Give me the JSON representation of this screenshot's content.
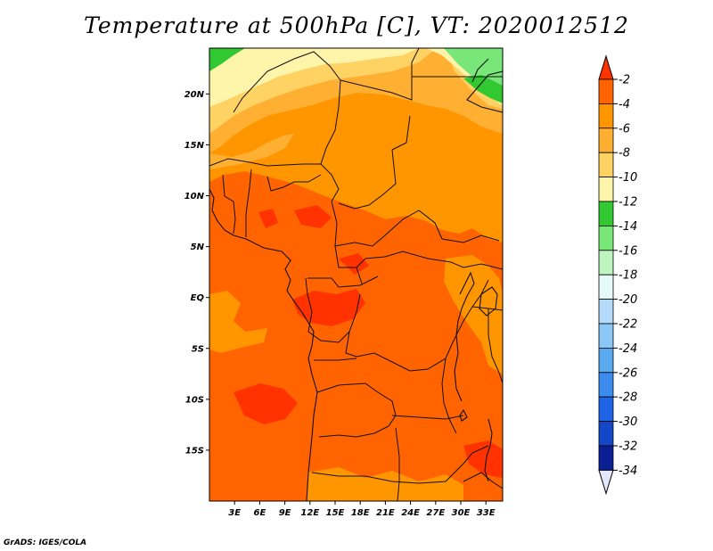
{
  "title": "Temperature at 500hPa [C], VT: 2020012512",
  "credit": "GrADS: IGES/COLA",
  "map": {
    "lat_labels": [
      "20N",
      "15N",
      "10N",
      "5N",
      "EQ",
      "5S",
      "10S",
      "15S"
    ],
    "lat_values": [
      20,
      15,
      10,
      5,
      0,
      -5,
      -10,
      -15
    ],
    "lon_labels": [
      "3E",
      "6E",
      "9E",
      "12E",
      "15E",
      "18E",
      "21E",
      "24E",
      "27E",
      "30E",
      "33E"
    ],
    "lon_values": [
      3,
      6,
      9,
      12,
      15,
      18,
      21,
      24,
      27,
      30,
      33
    ],
    "lat_range": [
      -20,
      24.5
    ],
    "lon_range": [
      0,
      35
    ]
  },
  "colorbar": {
    "labels": [
      "-2",
      "-4",
      "-6",
      "-8",
      "-10",
      "-12",
      "-14",
      "-16",
      "-18",
      "-20",
      "-22",
      "-24",
      "-26",
      "-28",
      "-30",
      "-32",
      "-34"
    ],
    "colors": [
      "#ff3200",
      "#ff6400",
      "#ff9600",
      "#ffaf32",
      "#ffd264",
      "#fff5aa",
      "#32c832",
      "#78e678",
      "#bef5be",
      "#e6fafa",
      "#b4dcfa",
      "#8cc8f5",
      "#5aaaf0",
      "#3c8cf0",
      "#1e64e6",
      "#1446c8",
      "#0a1e96",
      "#050a64",
      "#e6e6fa"
    ]
  },
  "palette": {
    "deep_red": "#ff3200",
    "red_orange": "#ff6400",
    "orange": "#ff9600",
    "light_orange": "#ffaf32",
    "yellow": "#ffd264",
    "pale_yellow": "#fff5aa",
    "green": "#32c832",
    "light_green": "#78e678"
  }
}
